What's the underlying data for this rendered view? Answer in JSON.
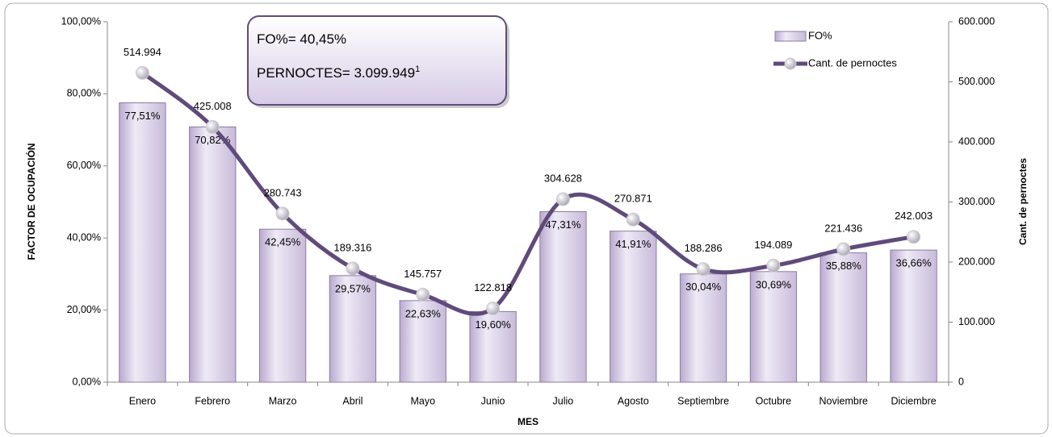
{
  "chart_data": {
    "type": "bar",
    "categories": [
      "Enero",
      "Febrero",
      "Marzo",
      "Abril",
      "Mayo",
      "Junio",
      "Julio",
      "Agosto",
      "Septiembre",
      "Octubre",
      "Noviembre",
      "Diciembre"
    ],
    "series": [
      {
        "name": "FO%",
        "type": "bar",
        "color": "#dcd3ea",
        "values": [
          77.51,
          70.82,
          42.45,
          29.57,
          22.63,
          19.6,
          47.31,
          41.91,
          30.04,
          30.69,
          35.88,
          36.66
        ],
        "value_labels": [
          "77,51%",
          "70,82%",
          "42,45%",
          "29,57%",
          "22,63%",
          "19,60%",
          "47,31%",
          "41,91%",
          "30,04%",
          "30,69%",
          "35,88%",
          "36,66%"
        ]
      },
      {
        "name": "Cant. de pernoctes",
        "type": "line",
        "axis": "y2",
        "color": "#604a7b",
        "values": [
          514994,
          425008,
          280743,
          189316,
          145757,
          122818,
          304628,
          270871,
          188286,
          194089,
          221436,
          242003
        ],
        "value_labels": [
          "514.994",
          "425.008",
          "280.743",
          "189.316",
          "145.757",
          "122.818",
          "304.628",
          "270.871",
          "188.286",
          "194.089",
          "221.436",
          "242.003"
        ]
      }
    ],
    "ylim": [
      0,
      100
    ],
    "yticks": [
      {
        "value": 0,
        "label": "0,00%"
      },
      {
        "value": 20,
        "label": "20,00%"
      },
      {
        "value": 40,
        "label": "40,00%"
      },
      {
        "value": 60,
        "label": "60,00%"
      },
      {
        "value": 80,
        "label": "80,00%"
      },
      {
        "value": 100,
        "label": "100,00%"
      }
    ],
    "y2lim": [
      0,
      600000
    ],
    "y2ticks": [
      0,
      {
        "value": 100000,
        "label": "100.000"
      },
      {
        "value": 200000,
        "label": "200.000"
      },
      {
        "value": 300000,
        "label": "300.000"
      },
      {
        "value": 400000,
        "label": "400.000"
      },
      {
        "value": 500000,
        "label": "500.000"
      },
      {
        "value": 600000,
        "label": "600.000"
      }
    ],
    "xlabel": "MES",
    "ylabel": "FACTOR DE OCUPACIÓN",
    "y2label": "Cant. de pernoctes",
    "annotations": [
      "FO%= 40,45%",
      "PERNOCTES= 3.099.949"
    ],
    "annotation_superscript": "1",
    "legend": "top-right"
  }
}
